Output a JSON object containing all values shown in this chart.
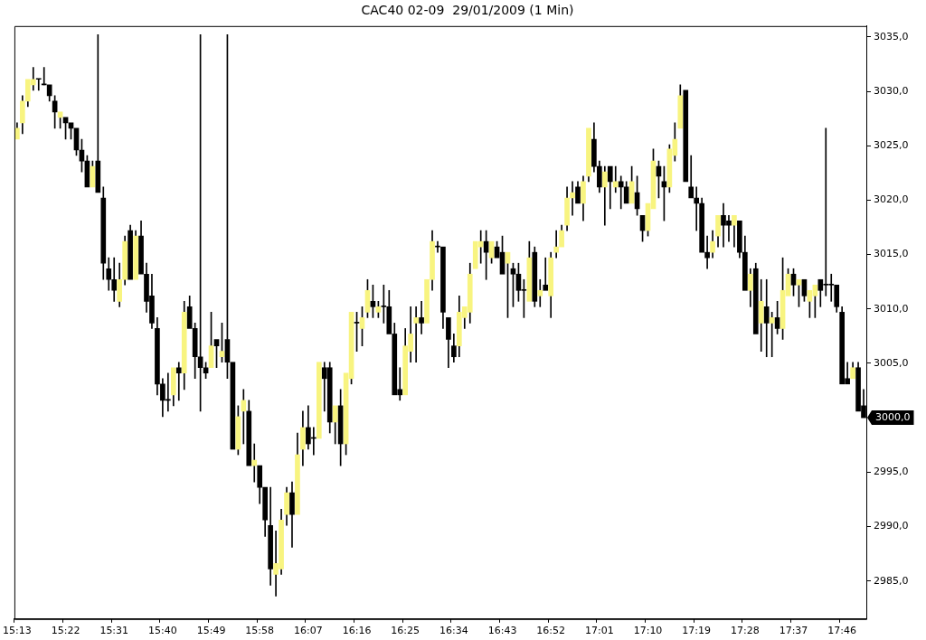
{
  "chart_data": {
    "type": "candlestick",
    "title": "CAC40 02-09  29/01/2009 (1 Min)",
    "categories": [
      "15:13",
      null,
      null,
      null,
      null,
      null,
      null,
      null,
      null,
      "15:22",
      null,
      null,
      null,
      null,
      null,
      null,
      null,
      null,
      "15:31",
      null,
      null,
      null,
      null,
      null,
      null,
      null,
      null,
      "15:40",
      null,
      null,
      null,
      null,
      null,
      null,
      null,
      null,
      "15:49",
      null,
      null,
      null,
      null,
      null,
      null,
      null,
      null,
      "15:58",
      null,
      null,
      null,
      null,
      null,
      null,
      null,
      null,
      "16:07",
      null,
      null,
      null,
      null,
      null,
      null,
      null,
      null,
      "16:16",
      null,
      null,
      null,
      null,
      null,
      null,
      null,
      null,
      "16:25",
      null,
      null,
      null,
      null,
      null,
      null,
      null,
      null,
      "16:34",
      null,
      null,
      null,
      null,
      null,
      null,
      null,
      null,
      "16:43",
      null,
      null,
      null,
      null,
      null,
      null,
      null,
      null,
      "16:52",
      null,
      null,
      null,
      null,
      null,
      null,
      null,
      null,
      "17:01",
      null,
      null,
      null,
      null,
      null,
      null,
      null,
      null,
      "17:10",
      null,
      null,
      null,
      null,
      null,
      null,
      null,
      null,
      "17:19",
      null,
      null,
      null,
      null,
      null,
      null,
      null,
      null,
      "17:28",
      null,
      null,
      null,
      null,
      null,
      null,
      null,
      null,
      "17:37",
      null,
      null,
      null,
      null,
      null,
      null,
      null,
      null,
      "17:46",
      null,
      null,
      null,
      null
    ],
    "ohlc": [
      [
        3025.6,
        3027.1,
        3025.6,
        3026.6
      ],
      [
        3027.1,
        3029.6,
        3026.1,
        3029.1
      ],
      [
        3029.1,
        3031.1,
        3028.6,
        3031.1
      ],
      [
        3030.6,
        3032.2,
        3030.1,
        3031.1
      ],
      [
        3031.1,
        3031.1,
        3030.1,
        3031.1
      ],
      [
        3030.6,
        3032.2,
        3030.6,
        3030.6
      ],
      [
        3030.6,
        3030.6,
        3029.1,
        3029.6
      ],
      [
        3029.1,
        3029.6,
        3026.6,
        3028.1
      ],
      [
        3027.6,
        3028.1,
        3026.6,
        3028.1
      ],
      [
        3027.6,
        3027.6,
        3025.6,
        3027.1
      ],
      [
        3027.1,
        3027.1,
        3025.6,
        3026.6
      ],
      [
        3026.6,
        3026.6,
        3024.1,
        3024.6
      ],
      [
        3024.6,
        3025.6,
        3022.6,
        3023.6
      ],
      [
        3023.6,
        3024.1,
        3021.2,
        3021.2
      ],
      [
        3021.2,
        3023.6,
        3021.2,
        3023.1
      ],
      [
        3023.6,
        3035.2,
        3020.7,
        3020.7
      ],
      [
        3020.2,
        3021.2,
        3012.7,
        3014.2
      ],
      [
        3013.7,
        3014.7,
        3011.7,
        3012.7
      ],
      [
        3012.7,
        3014.7,
        3010.7,
        3011.7
      ],
      [
        3010.7,
        3014.2,
        3010.2,
        3012.7
      ],
      [
        3012.7,
        3016.7,
        3012.2,
        3016.2
      ],
      [
        3017.2,
        3017.7,
        3012.7,
        3012.7
      ],
      [
        3012.7,
        3017.2,
        3012.7,
        3016.7
      ],
      [
        3016.7,
        3018.1,
        3013.2,
        3013.2
      ],
      [
        3013.2,
        3014.2,
        3009.7,
        3010.7
      ],
      [
        3011.2,
        3013.2,
        3008.2,
        3008.7
      ],
      [
        3008.2,
        3009.2,
        3002.1,
        3003.1
      ],
      [
        3003.1,
        3003.6,
        3000.1,
        3001.6
      ],
      [
        3001.6,
        3004.1,
        3000.6,
        3001.6
      ],
      [
        3002.1,
        3004.6,
        3001.1,
        3004.6
      ],
      [
        3004.6,
        3005.1,
        3001.6,
        3004.1
      ],
      [
        3004.1,
        3010.7,
        3002.6,
        3009.7
      ],
      [
        3010.2,
        3011.2,
        3008.2,
        3008.2
      ],
      [
        3008.2,
        3008.7,
        3003.6,
        3005.6
      ],
      [
        3005.6,
        3035.2,
        3000.6,
        3004.6
      ],
      [
        3004.6,
        3005.1,
        3003.6,
        3004.1
      ],
      [
        3004.6,
        3009.7,
        3004.6,
        3006.6
      ],
      [
        3007.2,
        3007.2,
        3004.6,
        3006.6
      ],
      [
        3005.6,
        3008.7,
        3005.1,
        3006.1
      ],
      [
        3007.2,
        3035.2,
        3003.6,
        3005.1
      ],
      [
        3005.1,
        3005.1,
        2997.1,
        2997.1
      ],
      [
        2997.1,
        3001.1,
        2996.6,
        3000.1
      ],
      [
        3000.6,
        3002.6,
        2997.6,
        3001.6
      ],
      [
        3000.6,
        3001.6,
        2995.6,
        2995.6
      ],
      [
        2995.6,
        2997.6,
        2994.1,
        2996.1
      ],
      [
        2995.6,
        2995.6,
        2992.1,
        2993.6
      ],
      [
        2993.6,
        2993.6,
        2989.1,
        2990.6
      ],
      [
        2990.1,
        2993.6,
        2984.6,
        2986.1
      ],
      [
        2985.6,
        2989.6,
        2983.6,
        2986.6
      ],
      [
        2986.1,
        2991.6,
        2985.6,
        2990.6
      ],
      [
        2991.1,
        2993.6,
        2990.1,
        2993.1
      ],
      [
        2993.1,
        2994.1,
        2988.1,
        2991.1
      ],
      [
        2991.1,
        2998.6,
        2991.1,
        2996.6
      ],
      [
        2997.1,
        3000.6,
        2995.6,
        2999.1
      ],
      [
        2999.1,
        3001.1,
        2997.1,
        2997.6
      ],
      [
        2998.1,
        2999.1,
        2996.6,
        2998.1
      ],
      [
        2998.1,
        3005.1,
        2998.1,
        3005.1
      ],
      [
        3004.6,
        3005.1,
        3000.6,
        3003.6
      ],
      [
        3004.6,
        3005.1,
        2998.6,
        2999.6
      ],
      [
        2999.6,
        3001.1,
        2997.6,
        3001.1
      ],
      [
        3001.1,
        3002.6,
        2995.6,
        2997.6
      ],
      [
        2997.6,
        3004.1,
        2996.6,
        3004.1
      ],
      [
        3003.6,
        3009.7,
        3003.1,
        3009.7
      ],
      [
        3008.7,
        3009.7,
        3006.1,
        3008.7
      ],
      [
        3008.2,
        3010.2,
        3006.6,
        3009.2
      ],
      [
        3009.7,
        3012.7,
        3009.2,
        3011.7
      ],
      [
        3010.7,
        3012.2,
        3009.2,
        3010.2
      ],
      [
        3009.7,
        3010.7,
        3009.2,
        3010.2
      ],
      [
        3010.2,
        3012.2,
        3008.7,
        3010.2
      ],
      [
        3010.2,
        3011.7,
        3007.7,
        3007.7
      ],
      [
        3007.7,
        3008.7,
        3002.1,
        3002.1
      ],
      [
        3002.6,
        3004.6,
        3001.6,
        3002.1
      ],
      [
        3002.1,
        3008.2,
        3002.1,
        3006.6
      ],
      [
        3006.1,
        3010.2,
        3005.1,
        3007.7
      ],
      [
        3008.7,
        3010.2,
        3005.1,
        3009.2
      ],
      [
        3009.2,
        3010.7,
        3007.7,
        3008.7
      ],
      [
        3008.7,
        3012.7,
        3008.7,
        3012.7
      ],
      [
        3012.7,
        3017.2,
        3011.7,
        3016.2
      ],
      [
        3015.7,
        3016.2,
        3015.2,
        3015.7
      ],
      [
        3015.7,
        3015.7,
        3008.2,
        3009.7
      ],
      [
        3009.2,
        3009.2,
        3004.6,
        3007.2
      ],
      [
        3006.6,
        3007.7,
        3005.1,
        3005.6
      ],
      [
        3006.6,
        3011.2,
        3005.6,
        3009.7
      ],
      [
        3009.2,
        3010.2,
        3008.2,
        3010.2
      ],
      [
        3009.7,
        3014.2,
        3008.7,
        3013.2
      ],
      [
        3013.7,
        3016.2,
        3013.7,
        3016.2
      ],
      [
        3015.7,
        3017.2,
        3014.2,
        3016.2
      ],
      [
        3016.2,
        3017.2,
        3012.7,
        3015.2
      ],
      [
        3014.7,
        3016.2,
        3014.2,
        3016.2
      ],
      [
        3015.7,
        3016.2,
        3014.7,
        3014.7
      ],
      [
        3015.2,
        3016.7,
        3013.2,
        3013.2
      ],
      [
        3014.2,
        3015.2,
        3009.2,
        3015.2
      ],
      [
        3013.7,
        3014.2,
        3010.2,
        3013.2
      ],
      [
        3013.2,
        3014.2,
        3010.7,
        3011.7
      ],
      [
        3011.7,
        3012.7,
        3009.2,
        3011.7
      ],
      [
        3010.7,
        3016.2,
        3010.7,
        3014.7
      ],
      [
        3015.2,
        3015.7,
        3010.2,
        3010.7
      ],
      [
        3011.2,
        3012.7,
        3010.2,
        3011.7
      ],
      [
        3012.2,
        3014.7,
        3011.7,
        3011.7
      ],
      [
        3011.2,
        3015.2,
        3009.2,
        3014.7
      ],
      [
        3015.2,
        3017.2,
        3014.7,
        3015.7
      ],
      [
        3015.7,
        3017.7,
        3015.7,
        3017.2
      ],
      [
        3017.7,
        3021.2,
        3017.2,
        3020.2
      ],
      [
        3020.2,
        3021.7,
        3018.6,
        3020.7
      ],
      [
        3021.2,
        3021.7,
        3019.7,
        3019.7
      ],
      [
        3019.7,
        3022.2,
        3018.1,
        3021.7
      ],
      [
        3022.2,
        3026.6,
        3021.7,
        3026.6
      ],
      [
        3025.6,
        3027.1,
        3022.6,
        3023.1
      ],
      [
        3023.1,
        3023.6,
        3020.7,
        3021.2
      ],
      [
        3021.2,
        3023.1,
        3017.7,
        3022.6
      ],
      [
        3023.1,
        3023.1,
        3019.2,
        3021.7
      ],
      [
        3021.2,
        3023.1,
        3020.7,
        3021.7
      ],
      [
        3021.7,
        3022.2,
        3019.2,
        3021.2
      ],
      [
        3021.2,
        3021.7,
        3019.7,
        3019.7
      ],
      [
        3019.7,
        3023.1,
        3019.7,
        3021.7
      ],
      [
        3020.7,
        3022.2,
        3018.6,
        3019.2
      ],
      [
        3018.6,
        3018.6,
        3016.2,
        3017.2
      ],
      [
        3017.2,
        3019.7,
        3016.7,
        3019.7
      ],
      [
        3019.2,
        3024.7,
        3019.2,
        3023.6
      ],
      [
        3023.1,
        3023.6,
        3020.2,
        3022.2
      ],
      [
        3021.7,
        3023.1,
        3018.1,
        3021.2
      ],
      [
        3021.2,
        3025.1,
        3020.7,
        3024.7
      ],
      [
        3024.1,
        3027.1,
        3023.6,
        3025.6
      ],
      [
        3026.6,
        3030.6,
        3026.6,
        3029.6
      ],
      [
        3030.1,
        3030.1,
        3021.7,
        3021.7
      ],
      [
        3021.2,
        3024.1,
        3020.2,
        3020.2
      ],
      [
        3020.2,
        3021.2,
        3017.2,
        3019.7
      ],
      [
        3019.7,
        3020.2,
        3015.2,
        3015.2
      ],
      [
        3015.2,
        3016.7,
        3013.7,
        3014.7
      ],
      [
        3015.2,
        3017.2,
        3014.7,
        3016.2
      ],
      [
        3016.7,
        3018.6,
        3015.7,
        3018.6
      ],
      [
        3018.6,
        3019.7,
        3015.7,
        3017.7
      ],
      [
        3018.1,
        3018.6,
        3016.2,
        3017.7
      ],
      [
        3017.7,
        3018.6,
        3015.7,
        3018.6
      ],
      [
        3018.1,
        3018.1,
        3014.7,
        3015.2
      ],
      [
        3015.2,
        3016.7,
        3011.7,
        3011.7
      ],
      [
        3011.7,
        3013.7,
        3010.2,
        3013.2
      ],
      [
        3013.7,
        3014.2,
        3007.7,
        3007.7
      ],
      [
        3008.7,
        3012.7,
        3006.1,
        3010.7
      ],
      [
        3010.2,
        3012.7,
        3005.6,
        3008.7
      ],
      [
        3008.7,
        3009.7,
        3005.6,
        3009.2
      ],
      [
        3009.2,
        3010.7,
        3007.7,
        3008.2
      ],
      [
        3008.2,
        3014.7,
        3007.2,
        3011.7
      ],
      [
        3011.2,
        3013.7,
        3011.2,
        3013.2
      ],
      [
        3013.2,
        3013.7,
        3011.2,
        3012.2
      ],
      [
        3012.2,
        3012.7,
        3010.2,
        3012.7
      ],
      [
        3012.7,
        3012.7,
        3010.7,
        3011.2
      ],
      [
        3010.7,
        3011.7,
        3009.2,
        3011.7
      ],
      [
        3011.2,
        3012.2,
        3009.2,
        3012.2
      ],
      [
        3012.7,
        3012.7,
        3010.2,
        3011.7
      ],
      [
        3012.2,
        3026.6,
        3011.2,
        3012.2
      ],
      [
        3012.2,
        3013.2,
        3010.7,
        3012.2
      ],
      [
        3012.2,
        3012.2,
        3009.7,
        3010.2
      ],
      [
        3009.7,
        3010.2,
        3003.1,
        3003.1
      ],
      [
        3003.6,
        3005.1,
        3003.1,
        3003.1
      ],
      [
        3003.6,
        3005.1,
        3003.6,
        3004.6
      ],
      [
        3004.6,
        3005.1,
        3000.6,
        3000.6
      ],
      [
        3001.1,
        3002.6,
        3000.0,
        3000.0
      ]
    ],
    "colors": [
      "#f8f480",
      "#f8f480",
      "#f8f480",
      "#f8f480",
      "#000000",
      "#000000",
      "#000000",
      "#000000",
      "#f8f480",
      "#000000",
      "#000000",
      "#000000",
      "#000000",
      "#000000",
      "#f8f480",
      "#000000",
      "#000000",
      "#000000",
      "#000000",
      "#f8f480",
      "#f8f480",
      "#000000",
      "#f8f480",
      "#000000",
      "#000000",
      "#000000",
      "#000000",
      "#000000",
      "#000000",
      "#f8f480",
      "#000000",
      "#f8f480",
      "#000000",
      "#000000",
      "#000000",
      "#000000",
      "#f8f480",
      "#000000",
      "#f8f480",
      "#000000",
      "#000000",
      "#f8f480",
      "#f8f480",
      "#000000",
      "#f8f480",
      "#000000",
      "#000000",
      "#000000",
      "#f8f480",
      "#f8f480",
      "#f8f480",
      "#000000",
      "#f8f480",
      "#f8f480",
      "#000000",
      "#000000",
      "#f8f480",
      "#000000",
      "#000000",
      "#f8f480",
      "#000000",
      "#f8f480",
      "#f8f480",
      "#000000",
      "#f8f480",
      "#f8f480",
      "#000000",
      "#f8f480",
      "#000000",
      "#000000",
      "#000000",
      "#000000",
      "#f8f480",
      "#f8f480",
      "#f8f480",
      "#000000",
      "#f8f480",
      "#f8f480",
      "#000000",
      "#000000",
      "#000000",
      "#000000",
      "#f8f480",
      "#f8f480",
      "#f8f480",
      "#f8f480",
      "#f8f480",
      "#000000",
      "#f8f480",
      "#000000",
      "#000000",
      "#f8f480",
      "#000000",
      "#000000",
      "#000000",
      "#f8f480",
      "#000000",
      "#f8f480",
      "#000000",
      "#f8f480",
      "#f8f480",
      "#f8f480",
      "#f8f480",
      "#f8f480",
      "#000000",
      "#f8f480",
      "#f8f480",
      "#000000",
      "#000000",
      "#f8f480",
      "#000000",
      "#f8f480",
      "#000000",
      "#000000",
      "#f8f480",
      "#000000",
      "#000000",
      "#f8f480",
      "#f8f480",
      "#000000",
      "#000000",
      "#f8f480",
      "#f8f480",
      "#f8f480",
      "#000000",
      "#000000",
      "#000000",
      "#000000",
      "#000000",
      "#f8f480",
      "#f8f480",
      "#000000",
      "#000000",
      "#f8f480",
      "#000000",
      "#000000",
      "#f8f480",
      "#000000",
      "#f8f480",
      "#000000",
      "#f8f480",
      "#000000",
      "#f8f480",
      "#f8f480",
      "#000000",
      "#f8f480",
      "#000000",
      "#f8f480",
      "#f8f480",
      "#000000",
      "#000000",
      "#000000",
      "#000000",
      "#000000",
      "#000000",
      "#f8f480",
      "#000000",
      "#000000"
    ],
    "ylim": [
      2981.5,
      3036
    ],
    "yticks": [
      {
        "value": 2985,
        "label": "2985,0"
      },
      {
        "value": 2990,
        "label": "2990,0"
      },
      {
        "value": 2995,
        "label": "2995,0"
      },
      {
        "value": 3005,
        "label": "3005,0"
      },
      {
        "value": 3010,
        "label": "3010,0"
      },
      {
        "value": 3015,
        "label": "3015,0"
      },
      {
        "value": 3020,
        "label": "3020,0"
      },
      {
        "value": 3025,
        "label": "3025,0"
      },
      {
        "value": 3030,
        "label": "3030,0"
      },
      {
        "value": 3035,
        "label": "3035,0"
      }
    ],
    "annotations": [
      "3000,0"
    ],
    "grid": false,
    "legend": false
  }
}
